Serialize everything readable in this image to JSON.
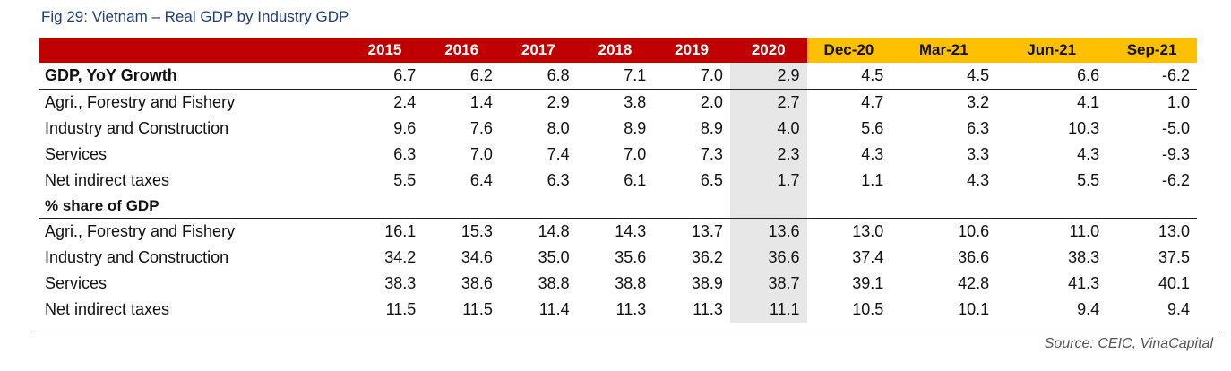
{
  "figure_title": "Fig 29: Vietnam – Real GDP by Industry GDP",
  "columns": [
    "2015",
    "2016",
    "2017",
    "2018",
    "2019",
    "2020",
    "Dec-20",
    "Mar-21",
    "Jun-21",
    "Sep-21"
  ],
  "colors": {
    "header_red": "#c00000",
    "header_yellow": "#ffc000",
    "highlight_gray": "#e7e7e7",
    "title_blue": "#1f3f73"
  },
  "growth_section": {
    "title": "GDP, YoY Growth",
    "title_values": [
      "6.7",
      "6.2",
      "6.8",
      "7.1",
      "7.0",
      "2.9",
      "4.5",
      "4.5",
      "6.6",
      "-6.2"
    ],
    "rows": [
      {
        "label": "Agri., Forestry and Fishery",
        "values": [
          "2.4",
          "1.4",
          "2.9",
          "3.8",
          "2.0",
          "2.7",
          "4.7",
          "3.2",
          "4.1",
          "1.0"
        ]
      },
      {
        "label": "Industry and Construction",
        "values": [
          "9.6",
          "7.6",
          "8.0",
          "8.9",
          "8.9",
          "4.0",
          "5.6",
          "6.3",
          "10.3",
          "-5.0"
        ]
      },
      {
        "label": "Services",
        "values": [
          "6.3",
          "7.0",
          "7.4",
          "7.0",
          "7.3",
          "2.3",
          "4.3",
          "3.3",
          "4.3",
          "-9.3"
        ]
      },
      {
        "label": "Net indirect taxes",
        "values": [
          "5.5",
          "6.4",
          "6.3",
          "6.1",
          "6.5",
          "1.7",
          "1.1",
          "4.3",
          "5.5",
          "-6.2"
        ]
      }
    ]
  },
  "share_section": {
    "title": "% share of GDP",
    "rows": [
      {
        "label": "Agri., Forestry and Fishery",
        "values": [
          "16.1",
          "15.3",
          "14.8",
          "14.3",
          "13.7",
          "13.6",
          "13.0",
          "10.6",
          "11.0",
          "13.0"
        ]
      },
      {
        "label": "Industry and Construction",
        "values": [
          "34.2",
          "34.6",
          "35.0",
          "35.6",
          "36.2",
          "36.6",
          "37.4",
          "36.6",
          "38.3",
          "37.5"
        ]
      },
      {
        "label": "Services",
        "values": [
          "38.3",
          "38.6",
          "38.8",
          "38.8",
          "38.9",
          "38.7",
          "39.1",
          "42.8",
          "41.3",
          "40.1"
        ]
      },
      {
        "label": "Net indirect taxes",
        "values": [
          "11.5",
          "11.5",
          "11.4",
          "11.3",
          "11.3",
          "11.1",
          "10.5",
          "10.1",
          "9.4",
          "9.4"
        ]
      }
    ]
  },
  "source": "Source: CEIC, VinaCapital"
}
